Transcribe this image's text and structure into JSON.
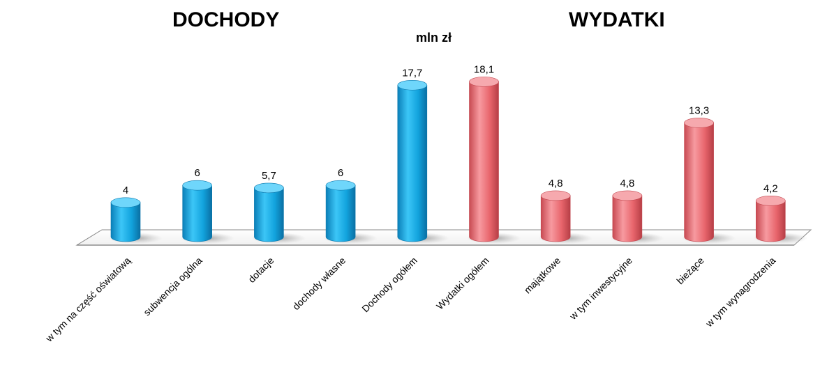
{
  "chart_data": {
    "type": "bar",
    "title_left": "DOCHODY",
    "title_right": "WYDATKI",
    "unit": "mln zł",
    "categories": [
      "w tym na część oświatową",
      "subwencja ogólna",
      "dotacje",
      "dochody własne",
      "Dochody ogółem",
      "Wydatki ogółem",
      "majątkowe",
      "w tym inwestycyjne",
      "bieżące",
      "w tym wynagrodzenia"
    ],
    "values": [
      4,
      6,
      5.7,
      6,
      17.7,
      18.1,
      4.8,
      4.8,
      13.3,
      4.2
    ],
    "value_labels": [
      "4",
      "6",
      "5,7",
      "6",
      "17,7",
      "18,1",
      "4,8",
      "4,8",
      "13,3",
      "4,2"
    ],
    "groups": [
      "DOCHODY",
      "DOCHODY",
      "DOCHODY",
      "DOCHODY",
      "DOCHODY",
      "WYDATKI",
      "WYDATKI",
      "WYDATKI",
      "WYDATKI",
      "WYDATKI"
    ],
    "colors": {
      "DOCHODY": "#1aa7e0",
      "WYDATKI": "#ec6a70"
    },
    "grid": false,
    "legend": "none"
  }
}
